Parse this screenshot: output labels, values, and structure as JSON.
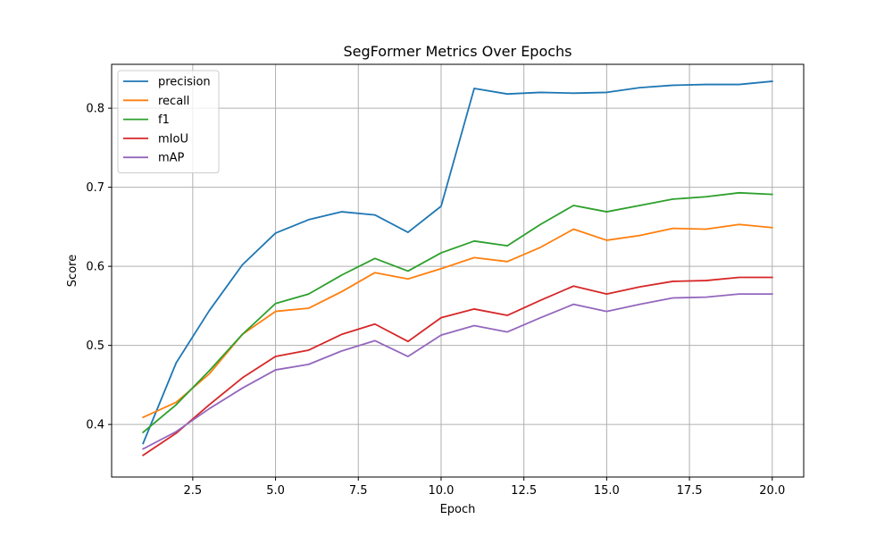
{
  "chart_data": {
    "type": "line",
    "title": "SegFormer Metrics Over Epochs",
    "xlabel": "Epoch",
    "ylabel": "Score",
    "xlim": [
      0.05,
      20.95
    ],
    "ylim": [
      0.3335,
      0.8555
    ],
    "xticks": [
      2.5,
      5.0,
      7.5,
      10.0,
      12.5,
      15.0,
      17.5,
      20.0
    ],
    "xtick_labels": [
      "2.5",
      "5.0",
      "7.5",
      "10.0",
      "12.5",
      "15.0",
      "17.5",
      "20.0"
    ],
    "yticks": [
      0.4,
      0.5,
      0.6,
      0.7,
      0.8
    ],
    "ytick_labels": [
      "0.4",
      "0.5",
      "0.6",
      "0.7",
      "0.8"
    ],
    "grid": true,
    "legend": "top-left",
    "x": [
      1,
      2,
      3,
      4,
      5,
      6,
      7,
      8,
      9,
      10,
      11,
      12,
      13,
      14,
      15,
      16,
      17,
      18,
      19,
      20
    ],
    "series": [
      {
        "name": "precision",
        "color": "#1f77b4",
        "values": [
          0.376,
          0.478,
          0.544,
          0.602,
          0.642,
          0.659,
          0.669,
          0.665,
          0.643,
          0.676,
          0.825,
          0.818,
          0.82,
          0.819,
          0.82,
          0.826,
          0.829,
          0.83,
          0.83,
          0.834
        ]
      },
      {
        "name": "recall",
        "color": "#ff7f0e",
        "values": [
          0.409,
          0.428,
          0.464,
          0.514,
          0.543,
          0.547,
          0.568,
          0.592,
          0.584,
          0.597,
          0.611,
          0.606,
          0.624,
          0.647,
          0.633,
          0.639,
          0.648,
          0.647,
          0.653,
          0.649
        ]
      },
      {
        "name": "f1",
        "color": "#2ca02c",
        "values": [
          0.39,
          0.425,
          0.468,
          0.514,
          0.553,
          0.565,
          0.589,
          0.61,
          0.594,
          0.617,
          0.632,
          0.626,
          0.653,
          0.677,
          0.669,
          0.677,
          0.685,
          0.688,
          0.693,
          0.691
        ]
      },
      {
        "name": "mIoU",
        "color": "#d62728",
        "values": [
          0.361,
          0.389,
          0.425,
          0.459,
          0.486,
          0.494,
          0.514,
          0.527,
          0.505,
          0.535,
          0.546,
          0.538,
          0.557,
          0.575,
          0.565,
          0.574,
          0.581,
          0.582,
          0.586,
          0.586
        ]
      },
      {
        "name": "mAP",
        "color": "#9467bd",
        "values": [
          0.369,
          0.391,
          0.42,
          0.446,
          0.469,
          0.476,
          0.493,
          0.506,
          0.486,
          0.513,
          0.525,
          0.517,
          0.535,
          0.552,
          0.543,
          0.552,
          0.56,
          0.561,
          0.565,
          0.565
        ]
      }
    ]
  }
}
